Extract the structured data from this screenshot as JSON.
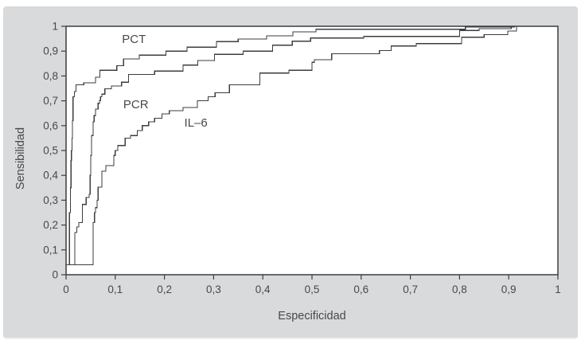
{
  "panel": {
    "background_color": "#d9dadb",
    "plot_background_color": "#ffffff",
    "line_color": "#3c3d40",
    "text_color": "#47484a"
  },
  "chart_data": {
    "type": "line",
    "subtype": "roc-step-curves",
    "title": "",
    "xlabel": "Especificidad",
    "ylabel": "Sensibilidad",
    "xlim": [
      0,
      1
    ],
    "ylim": [
      0,
      1
    ],
    "grid": false,
    "legend_position": "inline-labels",
    "x_ticks": [
      0,
      0.1,
      0.2,
      0.3,
      0.4,
      0.5,
      0.6,
      0.7,
      0.8,
      0.9,
      1
    ],
    "y_ticks": [
      0,
      0.1,
      0.2,
      0.3,
      0.4,
      0.5,
      0.6,
      0.7,
      0.8,
      0.9,
      1
    ],
    "x_tick_labels": [
      "0",
      "0,1",
      "0,2",
      "0,3",
      "0,4",
      "0,5",
      "0,6",
      "0,7",
      "0,8",
      "0,9",
      "1"
    ],
    "y_tick_labels": [
      "0",
      "0,1",
      "0,2",
      "0,3",
      "0,4",
      "0,5",
      "0,6",
      "0,7",
      "0,8",
      "0,9",
      "1"
    ],
    "series": [
      {
        "name": "PCT",
        "label": "PCT",
        "label_pos": [
          0.138,
          0.949
        ],
        "points": [
          [
            0,
            0.04
          ],
          [
            0.007,
            0.25
          ],
          [
            0.009,
            0.35
          ],
          [
            0.01,
            0.46
          ],
          [
            0.011,
            0.5
          ],
          [
            0.012,
            0.55
          ],
          [
            0.013,
            0.62
          ],
          [
            0.014,
            0.716
          ],
          [
            0.017,
            0.737
          ],
          [
            0.02,
            0.764
          ],
          [
            0.036,
            0.772
          ],
          [
            0.06,
            0.795
          ],
          [
            0.069,
            0.823
          ],
          [
            0.103,
            0.841
          ],
          [
            0.117,
            0.869
          ],
          [
            0.149,
            0.884
          ],
          [
            0.203,
            0.9
          ],
          [
            0.246,
            0.916
          ],
          [
            0.306,
            0.938
          ],
          [
            0.35,
            0.949
          ],
          [
            0.408,
            0.962
          ],
          [
            0.461,
            0.978
          ],
          [
            0.508,
            0.988
          ],
          [
            0.812,
            0.997
          ],
          [
            0.912,
            1
          ],
          [
            1,
            1
          ]
        ]
      },
      {
        "name": "PCR",
        "label": "PCR",
        "label_pos": [
          0.142,
          0.686
        ],
        "points": [
          [
            0,
            0.04
          ],
          [
            0.018,
            0.17
          ],
          [
            0.022,
            0.192
          ],
          [
            0.026,
            0.21
          ],
          [
            0.033,
            0.283
          ],
          [
            0.041,
            0.311
          ],
          [
            0.047,
            0.324
          ],
          [
            0.049,
            0.4
          ],
          [
            0.05,
            0.48
          ],
          [
            0.052,
            0.56
          ],
          [
            0.055,
            0.615
          ],
          [
            0.057,
            0.64
          ],
          [
            0.06,
            0.667
          ],
          [
            0.065,
            0.69
          ],
          [
            0.068,
            0.7
          ],
          [
            0.07,
            0.716
          ],
          [
            0.073,
            0.727
          ],
          [
            0.079,
            0.748
          ],
          [
            0.092,
            0.76
          ],
          [
            0.113,
            0.775
          ],
          [
            0.127,
            0.806
          ],
          [
            0.18,
            0.82
          ],
          [
            0.238,
            0.844
          ],
          [
            0.268,
            0.862
          ],
          [
            0.302,
            0.887
          ],
          [
            0.36,
            0.9
          ],
          [
            0.42,
            0.924
          ],
          [
            0.46,
            0.94
          ],
          [
            0.497,
            0.953
          ],
          [
            0.605,
            0.959
          ],
          [
            0.8,
            0.983
          ],
          [
            0.84,
            0.99
          ],
          [
            0.905,
            1
          ],
          [
            1,
            1
          ]
        ]
      },
      {
        "name": "IL-6",
        "label": "IL–6",
        "label_pos": [
          0.264,
          0.612
        ],
        "points": [
          [
            0,
            0.04
          ],
          [
            0.055,
            0.21
          ],
          [
            0.058,
            0.25
          ],
          [
            0.06,
            0.27
          ],
          [
            0.063,
            0.3
          ],
          [
            0.065,
            0.353
          ],
          [
            0.073,
            0.417
          ],
          [
            0.081,
            0.439
          ],
          [
            0.097,
            0.48
          ],
          [
            0.1,
            0.5
          ],
          [
            0.105,
            0.52
          ],
          [
            0.12,
            0.55
          ],
          [
            0.131,
            0.56
          ],
          [
            0.145,
            0.58
          ],
          [
            0.155,
            0.6
          ],
          [
            0.168,
            0.615
          ],
          [
            0.18,
            0.63
          ],
          [
            0.195,
            0.647
          ],
          [
            0.21,
            0.66
          ],
          [
            0.238,
            0.673
          ],
          [
            0.267,
            0.7
          ],
          [
            0.289,
            0.716
          ],
          [
            0.303,
            0.732
          ],
          [
            0.332,
            0.764
          ],
          [
            0.394,
            0.812
          ],
          [
            0.453,
            0.823
          ],
          [
            0.5,
            0.855
          ],
          [
            0.505,
            0.865
          ],
          [
            0.54,
            0.889
          ],
          [
            0.637,
            0.902
          ],
          [
            0.661,
            0.921
          ],
          [
            0.712,
            0.93
          ],
          [
            0.804,
            0.956
          ],
          [
            0.85,
            0.966
          ],
          [
            0.898,
            0.981
          ],
          [
            0.916,
            1
          ],
          [
            1,
            1
          ]
        ]
      }
    ]
  }
}
